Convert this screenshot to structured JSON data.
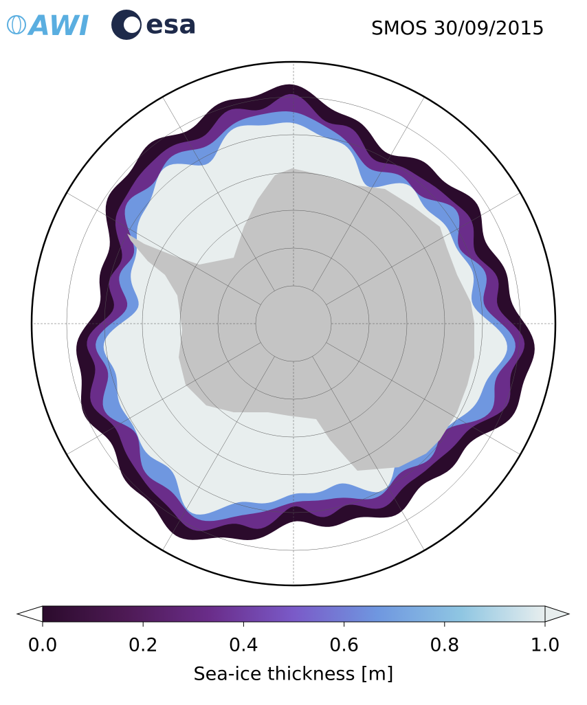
{
  "header": {
    "logos": [
      "AWI",
      "esa"
    ],
    "title": "SMOS 30/09/2015"
  },
  "colorbar": {
    "label": "Sea-ice thickness [m]",
    "clim": [
      0,
      1
    ],
    "ticks": [
      {
        "value": 0,
        "label": "0.0"
      },
      {
        "value": 0.2,
        "label": "0.2"
      },
      {
        "value": 0.4,
        "label": "0.4"
      },
      {
        "value": 0.6,
        "label": "0.6"
      },
      {
        "value": 0.8,
        "label": "0.8"
      },
      {
        "value": 1,
        "label": "1.0"
      }
    ],
    "colormap": [
      "#2b0b2c",
      "#4e1a55",
      "#6a2d8a",
      "#7a5ac8",
      "#6f97e0",
      "#8fc6e2",
      "#e8eeee"
    ]
  }
}
